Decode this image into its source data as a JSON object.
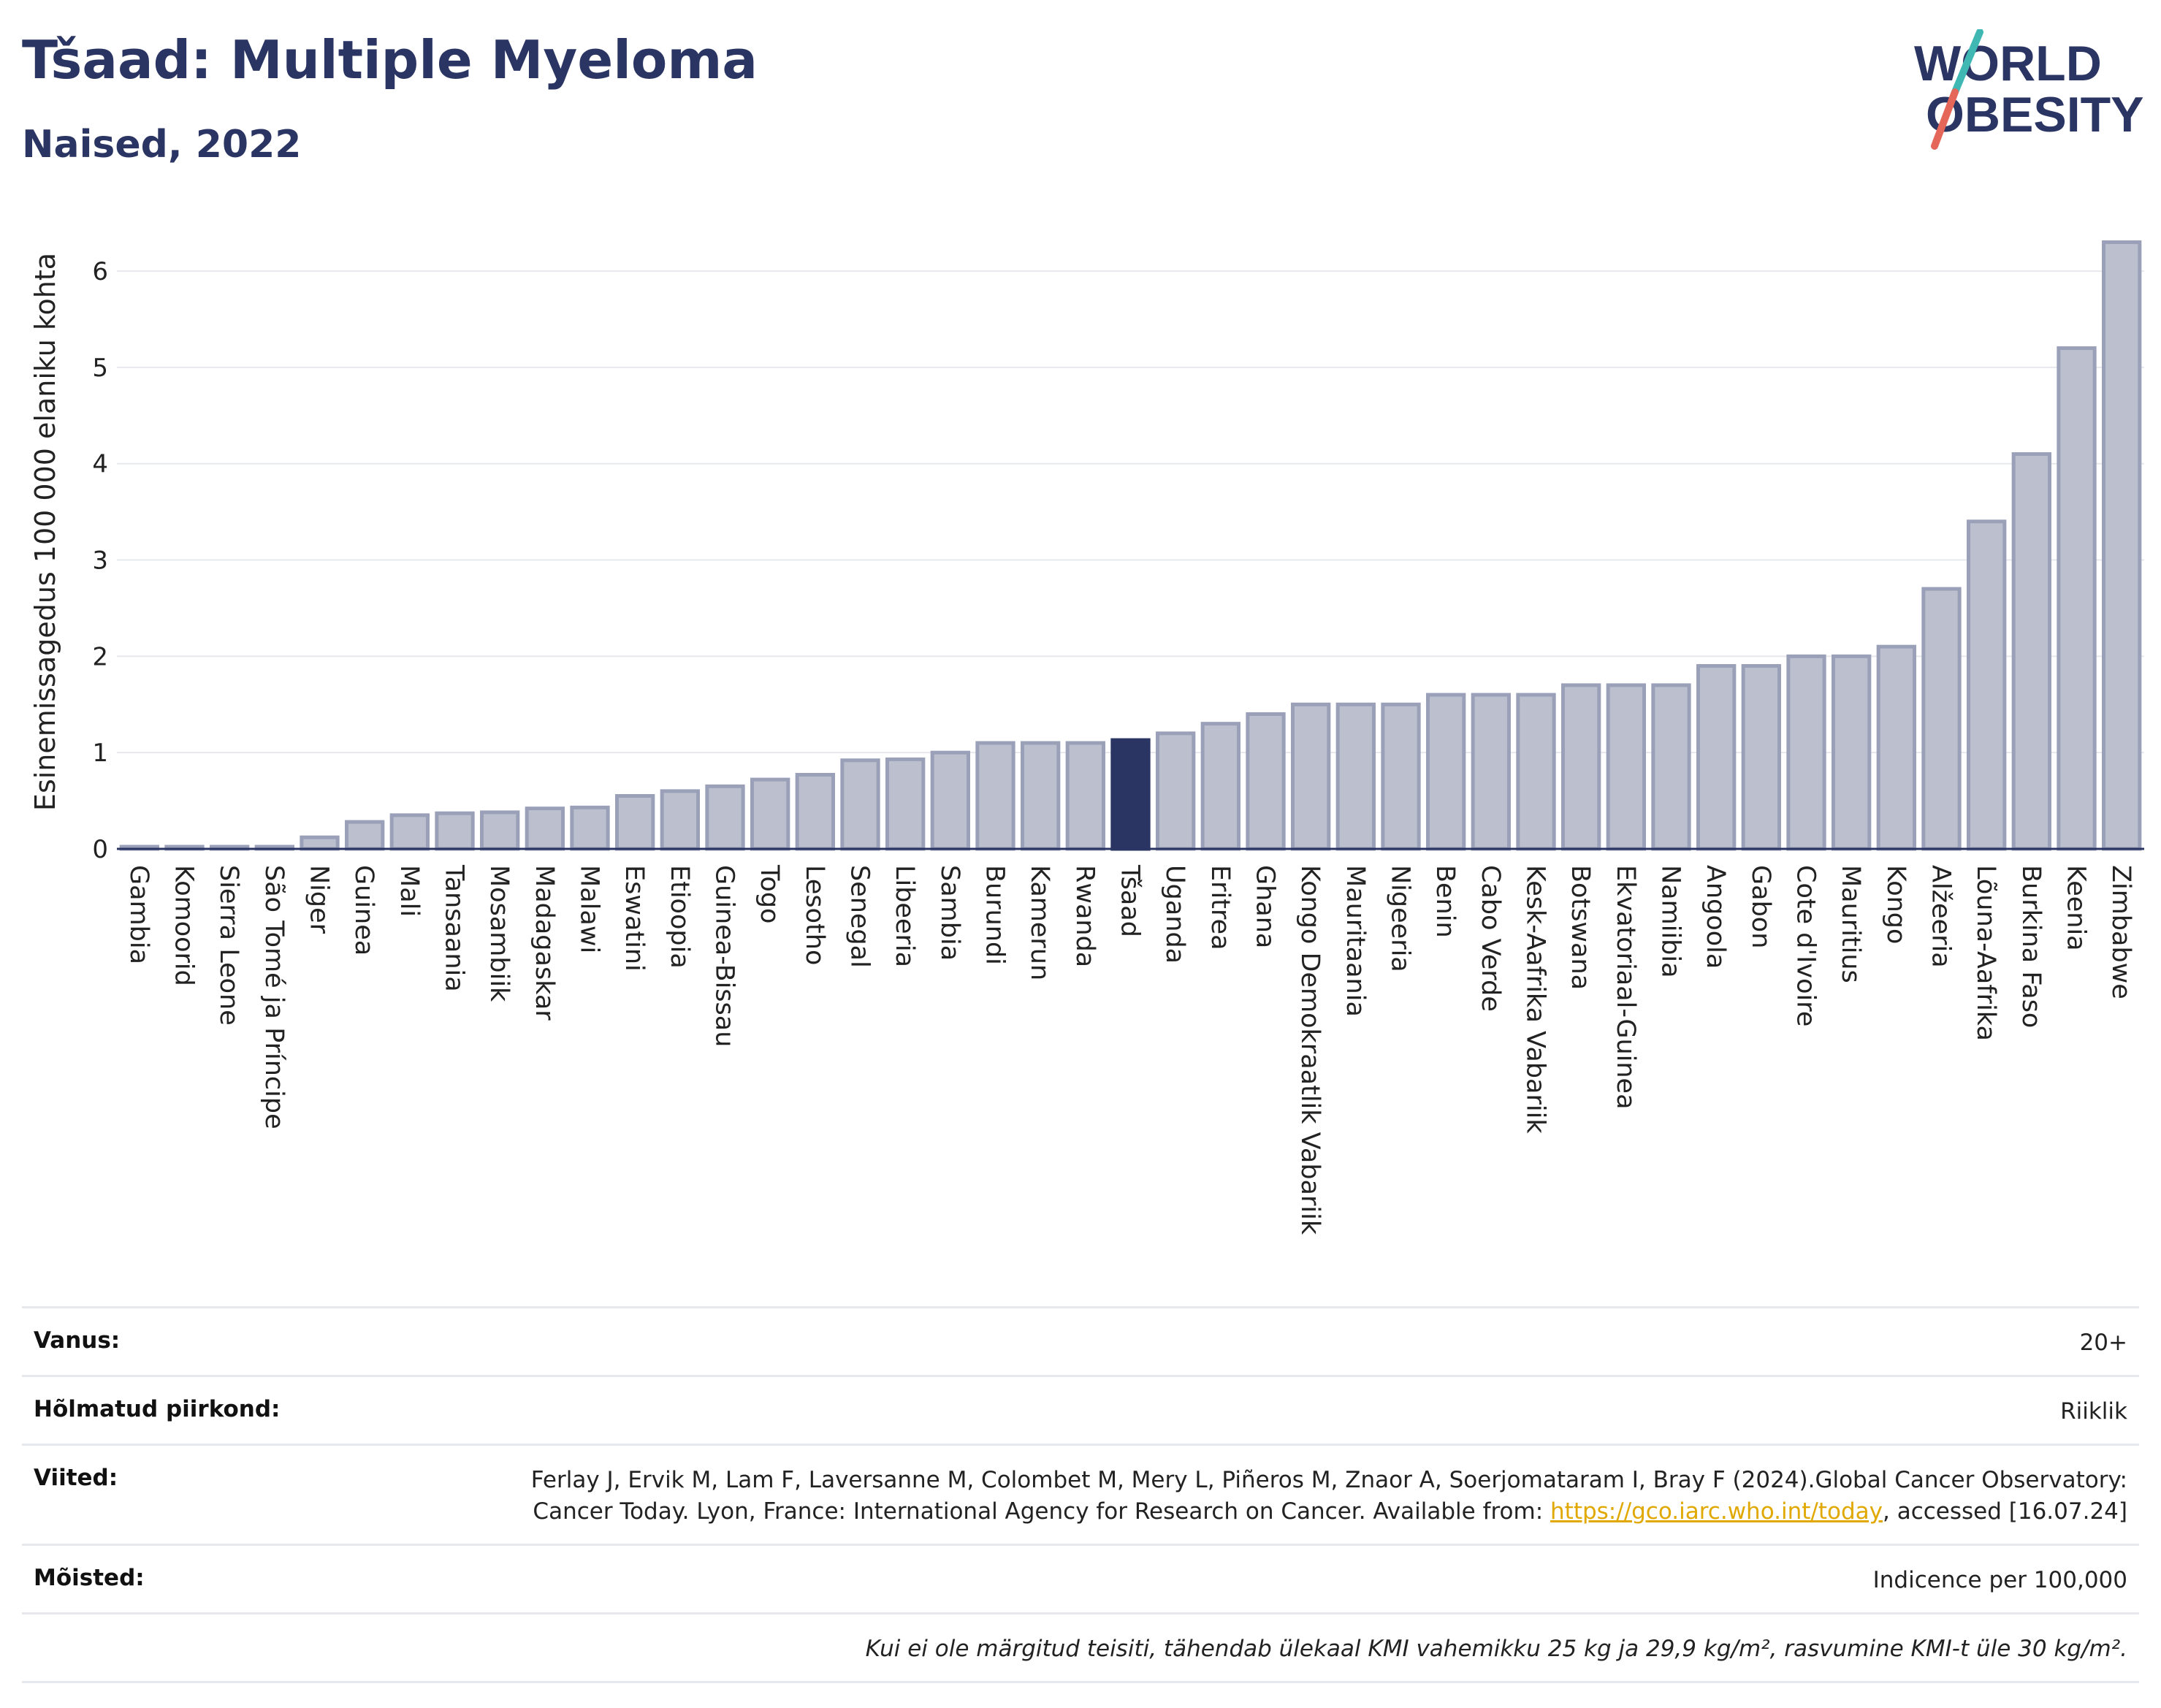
{
  "title": "Tšaad: Multiple Myeloma",
  "subtitle": "Naised, 2022",
  "logo": {
    "line1": "WORLD",
    "line2": "OBESITY"
  },
  "colors": {
    "highlight": "#2b3563",
    "bar_fill": "#bcc0ce",
    "bar_stroke": "#9aa0b8",
    "axis": "#2b3563",
    "grid": "#e6e8ee"
  },
  "chart_data": {
    "type": "bar",
    "title": "Tšaad: Multiple Myeloma",
    "subtitle": "Naised, 2022",
    "ylabel": "Esinemissagedus 100 000 elaniku kohta",
    "xlabel": "",
    "ylim": [
      0,
      6.6
    ],
    "yticks": [
      0,
      1,
      2,
      3,
      4,
      5,
      6
    ],
    "grid": true,
    "highlight": "Tšaad",
    "categories": [
      "Gambia",
      "Komoorid",
      "Sierra Leone",
      "São Tomé ja Príncipe",
      "Niger",
      "Guinea",
      "Mali",
      "Tansaania",
      "Mosambiik",
      "Madagaskar",
      "Malawi",
      "Eswatini",
      "Etioopia",
      "Guinea-Bissau",
      "Togo",
      "Lesotho",
      "Senegal",
      "Libeeria",
      "Sambia",
      "Burundi",
      "Kamerun",
      "Rwanda",
      "Tšaad",
      "Uganda",
      "Eritrea",
      "Ghana",
      "Kongo Demokraatlik Vabariik",
      "Mauritaania",
      "Nigeeria",
      "Benin",
      "Cabo Verde",
      "Kesk-Aafrika Vabariik",
      "Botswana",
      "Ekvatoriaal-Guinea",
      "Namiibia",
      "Angoola",
      "Gabon",
      "Cote d'Ivoire",
      "Mauritius",
      "Kongo",
      "Alžeeria",
      "Lõuna-Aafrika",
      "Burkina Faso",
      "Keenia",
      "Zimbabwe"
    ],
    "values": [
      0.02,
      0.02,
      0.02,
      0.02,
      0.12,
      0.28,
      0.35,
      0.37,
      0.38,
      0.42,
      0.43,
      0.55,
      0.6,
      0.65,
      0.72,
      0.77,
      0.92,
      0.93,
      1.0,
      1.1,
      1.1,
      1.1,
      1.13,
      1.2,
      1.3,
      1.4,
      1.5,
      1.5,
      1.5,
      1.6,
      1.6,
      1.6,
      1.7,
      1.7,
      1.7,
      1.9,
      1.9,
      2.0,
      2.0,
      2.1,
      2.7,
      3.4,
      4.1,
      5.2,
      6.3
    ]
  },
  "info": {
    "age_label": "Vanus:",
    "age_value": "20+",
    "area_label": "Hõlmatud piirkond:",
    "area_value": "Riiklik",
    "refs_label": "Viited:",
    "refs_text": "Ferlay J, Ervik M, Lam F, Laversanne M, Colombet M, Mery L, Piñeros M, Znaor A, Soerjomataram I, Bray F (2024).Global Cancer Observatory: Cancer Today. Lyon, France: International Agency for Research on Cancer. Available from: ",
    "refs_link": "https://gco.iarc.who.int/today",
    "refs_tail": ", accessed [16.07.24]",
    "defs_label": "Mõisted:",
    "defs_value": "Indicence per 100,000",
    "note": "Kui ei ole märgitud teisiti, tähendab ülekaal KMI vahemikku 25 kg ja 29,9 kg/m², rasvumine KMI-t üle 30 kg/m²."
  }
}
